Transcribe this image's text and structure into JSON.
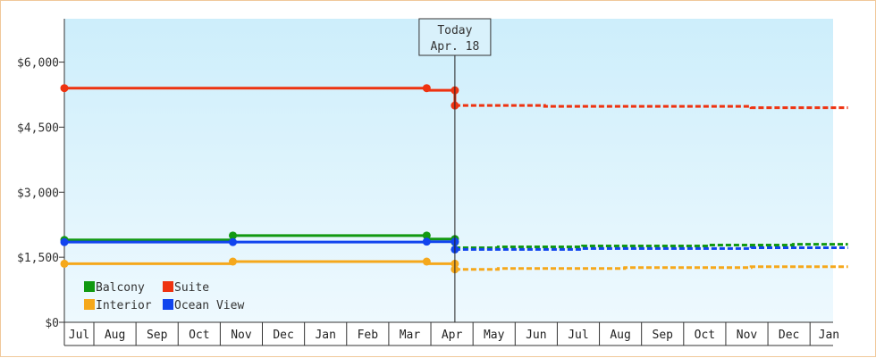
{
  "chart_data": {
    "type": "line",
    "title": "",
    "xlabel": "",
    "ylabel": "",
    "ylim": [
      0,
      7000
    ],
    "y_ticks": [
      {
        "value": 0,
        "label": "$0"
      },
      {
        "value": 1500,
        "label": "$1,500"
      },
      {
        "value": 3000,
        "label": "$3,000"
      },
      {
        "value": 4500,
        "label": "$4,500"
      },
      {
        "value": 6000,
        "label": "$6,000"
      }
    ],
    "x_months": [
      "Jul",
      "Aug",
      "Sep",
      "Oct",
      "Nov",
      "Dec",
      "Jan",
      "Feb",
      "Mar",
      "Apr",
      "May",
      "Jun",
      "Jul",
      "Aug",
      "Sep",
      "Oct",
      "Nov",
      "Dec",
      "Jan"
    ],
    "x_range": [
      0.3,
      18.9
    ],
    "today": {
      "label": "Today",
      "date": "Apr. 18",
      "x": 9.57
    },
    "grid": "off",
    "legend": "bottom-left",
    "series": [
      {
        "name": "Balcony",
        "color": "#119911",
        "history": [
          [
            0.3,
            1900
          ],
          [
            4.3,
            1900
          ],
          [
            4.3,
            2000
          ],
          [
            8.9,
            2000
          ],
          [
            8.9,
            1920
          ],
          [
            9.57,
            1920
          ],
          [
            9.57,
            1850
          ]
        ],
        "markers": [
          [
            0.3,
            1900
          ],
          [
            4.3,
            2000
          ],
          [
            8.9,
            2000
          ],
          [
            9.57,
            1920
          ],
          [
            9.57,
            1850
          ]
        ],
        "forecast": [
          [
            9.57,
            1720
          ],
          [
            10.6,
            1720
          ],
          [
            10.6,
            1740
          ],
          [
            12.6,
            1740
          ],
          [
            12.6,
            1760
          ],
          [
            15.6,
            1760
          ],
          [
            15.6,
            1780
          ],
          [
            17.6,
            1780
          ],
          [
            17.6,
            1800
          ],
          [
            18.9,
            1800
          ]
        ]
      },
      {
        "name": "Suite",
        "color": "#ee3311",
        "history": [
          [
            0.3,
            5400
          ],
          [
            8.9,
            5400
          ],
          [
            8.9,
            5350
          ],
          [
            9.57,
            5350
          ],
          [
            9.57,
            5000
          ]
        ],
        "markers": [
          [
            0.3,
            5400
          ],
          [
            8.9,
            5400
          ],
          [
            9.57,
            5350
          ],
          [
            9.57,
            5000
          ]
        ],
        "forecast": [
          [
            9.57,
            5000
          ],
          [
            11.7,
            5000
          ],
          [
            11.7,
            4980
          ],
          [
            16.6,
            4980
          ],
          [
            16.6,
            4950
          ],
          [
            18.9,
            4950
          ]
        ]
      },
      {
        "name": "Interior",
        "color": "#f5a81c",
        "history": [
          [
            0.3,
            1350
          ],
          [
            4.3,
            1350
          ],
          [
            4.3,
            1400
          ],
          [
            8.9,
            1400
          ],
          [
            8.9,
            1350
          ],
          [
            9.57,
            1350
          ],
          [
            9.57,
            1220
          ]
        ],
        "markers": [
          [
            0.3,
            1350
          ],
          [
            4.3,
            1400
          ],
          [
            8.9,
            1400
          ],
          [
            9.57,
            1350
          ],
          [
            9.57,
            1220
          ]
        ],
        "forecast": [
          [
            9.57,
            1220
          ],
          [
            10.6,
            1220
          ],
          [
            10.6,
            1240
          ],
          [
            13.6,
            1240
          ],
          [
            13.6,
            1260
          ],
          [
            16.6,
            1260
          ],
          [
            16.6,
            1280
          ],
          [
            18.9,
            1280
          ]
        ]
      },
      {
        "name": "Ocean View",
        "color": "#1144ee",
        "history": [
          [
            0.3,
            1850
          ],
          [
            8.9,
            1850
          ],
          [
            8.9,
            1860
          ],
          [
            9.57,
            1860
          ],
          [
            9.57,
            1680
          ]
        ],
        "markers": [
          [
            0.3,
            1850
          ],
          [
            4.3,
            1850
          ],
          [
            8.9,
            1860
          ],
          [
            9.57,
            1860
          ],
          [
            9.57,
            1680
          ]
        ],
        "forecast": [
          [
            9.57,
            1680
          ],
          [
            12.6,
            1680
          ],
          [
            12.6,
            1700
          ],
          [
            16.6,
            1700
          ],
          [
            16.6,
            1720
          ],
          [
            18.9,
            1720
          ]
        ]
      }
    ]
  }
}
